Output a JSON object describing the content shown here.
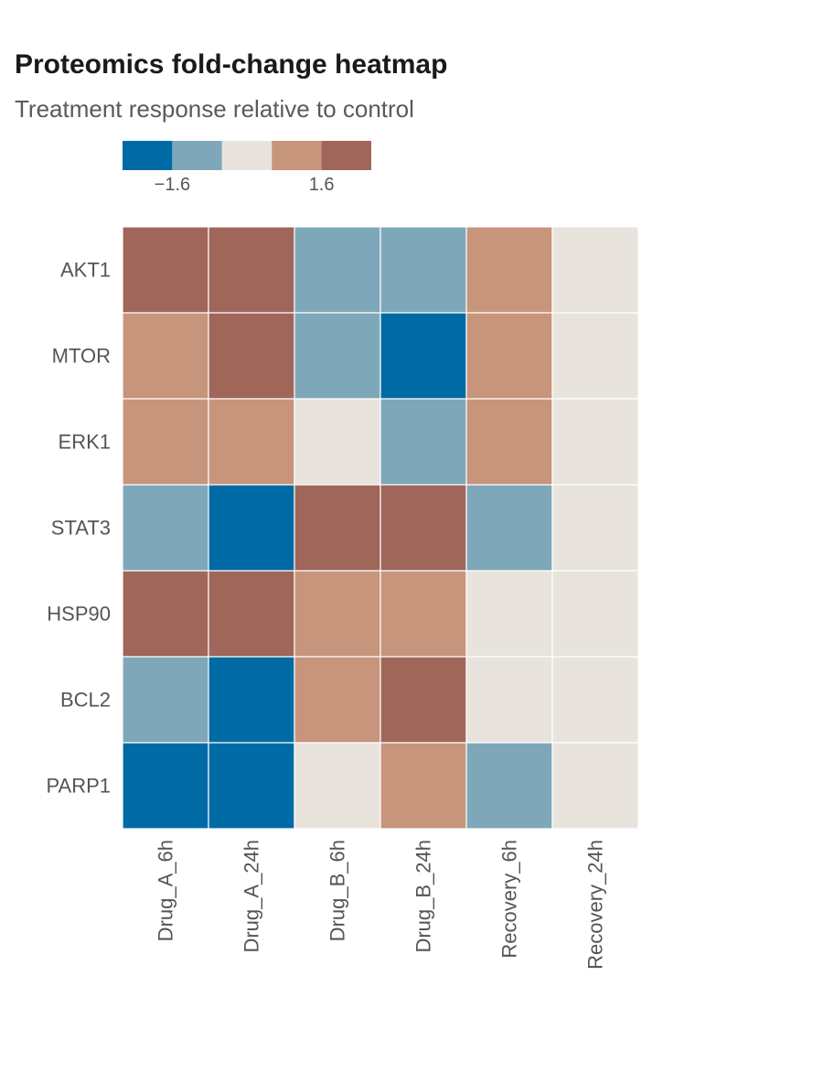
{
  "chart_data": {
    "type": "heatmap",
    "title": "Proteomics fold-change heatmap",
    "subtitle": "Treatment response relative to control",
    "rows": [
      "AKT1",
      "MTOR",
      "ERK1",
      "STAT3",
      "HSP90",
      "BCL2",
      "PARP1"
    ],
    "columns": [
      "Drug_A_6h",
      "Drug_A_24h",
      "Drug_B_6h",
      "Drug_B_24h",
      "Recovery_6h",
      "Recovery_24h"
    ],
    "values": [
      [
        2.4,
        2.4,
        -1.2,
        -1.2,
        1.2,
        0.0
      ],
      [
        1.2,
        2.4,
        -1.2,
        -2.4,
        1.2,
        0.0
      ],
      [
        1.2,
        1.2,
        0.0,
        -1.2,
        1.2,
        0.0
      ],
      [
        -1.2,
        -2.4,
        2.4,
        2.4,
        -1.2,
        0.0
      ],
      [
        2.4,
        2.4,
        1.2,
        1.2,
        0.0,
        0.0
      ],
      [
        -1.2,
        -2.4,
        1.2,
        2.4,
        0.0,
        0.0
      ],
      [
        -2.4,
        -2.4,
        0.0,
        1.2,
        -1.2,
        0.0
      ]
    ],
    "legend": {
      "type": "binned",
      "bins": [
        -3.2,
        -1.6,
        -0.8,
        0.8,
        1.6,
        3.2
      ],
      "colors": [
        "#006aa5",
        "#7ea7ba",
        "#e8e4dd",
        "#c7957b",
        "#a0665a"
      ],
      "tick_labels": [
        "−1.6",
        "1.6"
      ],
      "tick_values": [
        -1.6,
        1.6
      ],
      "placement": "top-left"
    },
    "grid": false
  }
}
